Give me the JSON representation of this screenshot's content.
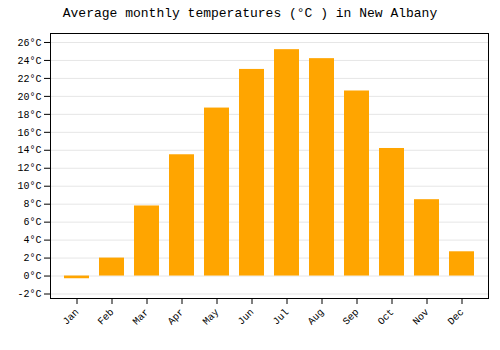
{
  "chart_data": {
    "type": "bar",
    "title": "Average monthly temperatures (°C ) in New Albany",
    "categories": [
      "Jan",
      "Feb",
      "Mar",
      "Apr",
      "May",
      "Jun",
      "Jul",
      "Aug",
      "Sep",
      "Oct",
      "Nov",
      "Dec"
    ],
    "values": [
      -0.3,
      2.0,
      7.8,
      13.5,
      18.7,
      23.0,
      25.2,
      24.2,
      20.6,
      14.2,
      8.5,
      2.7
    ],
    "color": "#FFA500",
    "ylim": [
      -2.5,
      27
    ],
    "yticks": [
      {
        "value": -2,
        "label": "-2°C"
      },
      {
        "value": 0,
        "label": "0°C"
      },
      {
        "value": 2,
        "label": "2°C"
      },
      {
        "value": 4,
        "label": "4°C"
      },
      {
        "value": 6,
        "label": "6°C"
      },
      {
        "value": 8,
        "label": "8°C"
      },
      {
        "value": 10,
        "label": "10°C"
      },
      {
        "value": 12,
        "label": "12°C"
      },
      {
        "value": 14,
        "label": "14°C"
      },
      {
        "value": 16,
        "label": "16°C"
      },
      {
        "value": 18,
        "label": "18°C"
      },
      {
        "value": 20,
        "label": "20°C"
      },
      {
        "value": 22,
        "label": "22°C"
      },
      {
        "value": 24,
        "label": "24°C"
      },
      {
        "value": 26,
        "label": "26°C"
      }
    ],
    "grid": true
  }
}
